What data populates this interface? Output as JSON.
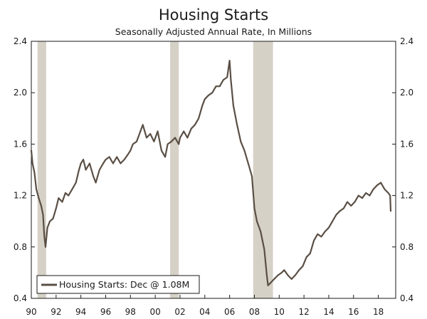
{
  "chart_data": {
    "type": "line",
    "title": "Housing Starts",
    "subtitle": "Seasonally Adjusted Annual Rate, In Millions",
    "xlabel": "",
    "ylabel": "",
    "xlim": [
      1990,
      2019.4
    ],
    "ylim": [
      0.4,
      2.4
    ],
    "y_ticks": [
      0.4,
      0.8,
      1.2,
      1.6,
      2.0,
      2.4
    ],
    "y_tick_labels": [
      "0.4",
      "0.8",
      "1.2",
      "1.6",
      "2.0",
      "2.4"
    ],
    "x_ticks": [
      1990,
      1992,
      1994,
      1996,
      1998,
      2000,
      2002,
      2004,
      2006,
      2008,
      2010,
      2012,
      2014,
      2016,
      2018
    ],
    "x_tick_labels": [
      "90",
      "92",
      "94",
      "96",
      "98",
      "00",
      "02",
      "04",
      "06",
      "08",
      "10",
      "12",
      "14",
      "16",
      "18"
    ],
    "recessions": [
      {
        "start": 1990.5,
        "end": 1991.2
      },
      {
        "start": 2001.2,
        "end": 2001.9
      },
      {
        "start": 2007.9,
        "end": 2009.5
      }
    ],
    "legend": "top-left-bottom",
    "series": [
      {
        "name": "Housing Starts: Dec @ 1.08M",
        "color": "#5a4f45",
        "x": [
          1990.0,
          1990.1,
          1990.25,
          1990.4,
          1990.6,
          1990.8,
          1990.95,
          1991.05,
          1991.15,
          1991.3,
          1991.5,
          1991.75,
          1992.0,
          1992.2,
          1992.5,
          1992.75,
          1993.0,
          1993.3,
          1993.6,
          1993.85,
          1994.0,
          1994.2,
          1994.4,
          1994.7,
          1995.0,
          1995.2,
          1995.5,
          1995.8,
          1996.0,
          1996.3,
          1996.6,
          1996.9,
          1997.2,
          1997.5,
          1997.8,
          1998.0,
          1998.2,
          1998.5,
          1998.8,
          1999.0,
          1999.3,
          1999.6,
          1999.9,
          2000.2,
          2000.5,
          2000.8,
          2001.0,
          2001.3,
          2001.6,
          2001.9,
          2002.0,
          2002.3,
          2002.6,
          2002.9,
          2003.2,
          2003.5,
          2003.8,
          2004.0,
          2004.3,
          2004.6,
          2004.9,
          2005.2,
          2005.5,
          2005.8,
          2006.0,
          2006.1,
          2006.3,
          2006.6,
          2006.9,
          2007.2,
          2007.5,
          2007.8,
          2008.0,
          2008.2,
          2008.5,
          2008.8,
          2009.0,
          2009.1,
          2009.3,
          2009.6,
          2009.9,
          2010.2,
          2010.4,
          2010.7,
          2011.0,
          2011.3,
          2011.6,
          2011.9,
          2012.2,
          2012.5,
          2012.8,
          2013.1,
          2013.4,
          2013.7,
          2014.0,
          2014.3,
          2014.6,
          2014.9,
          2015.2,
          2015.5,
          2015.8,
          2016.1,
          2016.4,
          2016.7,
          2017.0,
          2017.3,
          2017.6,
          2017.9,
          2018.2,
          2018.5,
          2018.8,
          2018.95,
          2019.0
        ],
        "values": [
          1.55,
          1.45,
          1.38,
          1.25,
          1.18,
          1.12,
          1.05,
          0.88,
          0.8,
          0.95,
          1.0,
          1.02,
          1.1,
          1.18,
          1.15,
          1.22,
          1.2,
          1.25,
          1.3,
          1.4,
          1.45,
          1.48,
          1.4,
          1.45,
          1.35,
          1.3,
          1.4,
          1.45,
          1.48,
          1.5,
          1.45,
          1.5,
          1.45,
          1.48,
          1.52,
          1.55,
          1.6,
          1.62,
          1.7,
          1.75,
          1.65,
          1.68,
          1.62,
          1.7,
          1.55,
          1.5,
          1.6,
          1.62,
          1.65,
          1.6,
          1.65,
          1.7,
          1.65,
          1.72,
          1.75,
          1.8,
          1.9,
          1.95,
          1.98,
          2.0,
          2.05,
          2.05,
          2.1,
          2.12,
          2.25,
          2.1,
          1.9,
          1.75,
          1.62,
          1.55,
          1.45,
          1.35,
          1.1,
          1.0,
          0.92,
          0.78,
          0.58,
          0.5,
          0.52,
          0.55,
          0.58,
          0.6,
          0.62,
          0.58,
          0.55,
          0.58,
          0.62,
          0.65,
          0.72,
          0.75,
          0.85,
          0.9,
          0.88,
          0.92,
          0.95,
          1.0,
          1.05,
          1.08,
          1.1,
          1.15,
          1.12,
          1.15,
          1.2,
          1.18,
          1.22,
          1.2,
          1.25,
          1.28,
          1.3,
          1.25,
          1.22,
          1.2,
          1.08
        ]
      }
    ]
  }
}
